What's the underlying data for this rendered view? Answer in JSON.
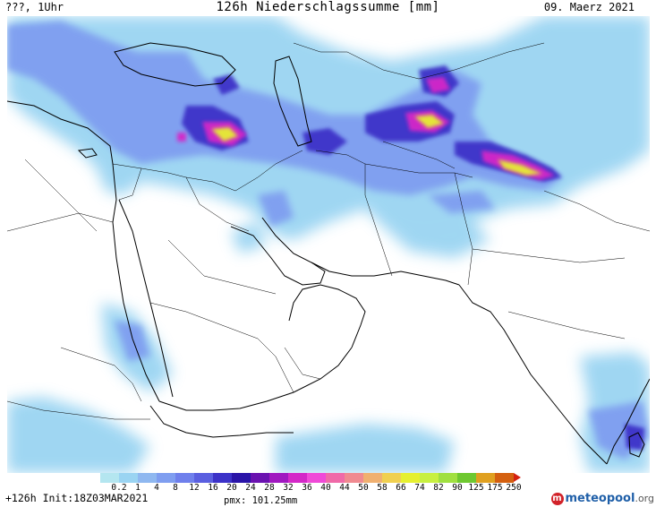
{
  "header": {
    "left": "???, 1Uhr",
    "title": "126h Niederschlagssumme [mm]",
    "right": "09. Maerz 2021"
  },
  "footer": {
    "lead_time": "+126h",
    "init": "Init:18Z03MAR2021",
    "pmx": "pmx: 101.25mm"
  },
  "logo": {
    "glyph": "m",
    "name": "meteopool",
    "suffix": ".org"
  },
  "legend": {
    "labels": [
      "0.2",
      "1",
      "4",
      "8",
      "12",
      "16",
      "20",
      "24",
      "28",
      "32",
      "36",
      "40",
      "44",
      "50",
      "58",
      "66",
      "74",
      "82",
      "90",
      "125",
      "175",
      "250"
    ],
    "colors": [
      "#b4e6f0",
      "#9ad4f2",
      "#8fb8f0",
      "#7f9ef0",
      "#6f80ec",
      "#5a5fe0",
      "#3c32c8",
      "#2a14a8",
      "#6a12b0",
      "#a018c0",
      "#d428c8",
      "#f04ad8",
      "#f06aa8",
      "#f08a90",
      "#f0b070",
      "#f0d050",
      "#e6f030",
      "#c8f040",
      "#a0e040",
      "#6ec830",
      "#e0a020",
      "#d46010"
    ]
  },
  "precip_colors": {
    "light": "#9ad4f2",
    "moderate": "#7f9ef0",
    "heavy": "#3c32c8",
    "very_heavy": "#d428c8",
    "extreme": "#e6f030"
  }
}
